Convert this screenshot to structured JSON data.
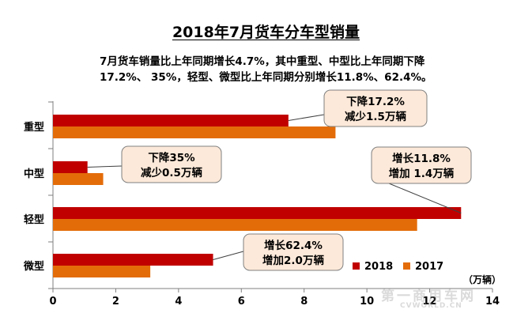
{
  "chart_title": "2018年7月货车分车型销量",
  "subtitle_lines": [
    "7月货车销量比上年同期增长4.7%，其中重型、中型比上年同期下降",
    "17.2%、 35%，轻型、微型比上年同期分别增长11.8%、62.4%。"
  ],
  "watermark": "第一商用车网",
  "watermark_en": "CVWORLD.CN",
  "colors": {
    "2018": "#c00000",
    "2017": "#e36c09",
    "callout_fill": "#fde9d9",
    "callout_border": "#808080"
  },
  "chart_data": {
    "type": "bar",
    "orientation": "horizontal",
    "categories": [
      "重型",
      "中型",
      "轻型",
      "微型"
    ],
    "series": [
      {
        "name": "2018",
        "values": [
          7.5,
          1.1,
          13.0,
          5.1
        ]
      },
      {
        "name": "2017",
        "values": [
          9.0,
          1.6,
          11.6,
          3.1
        ]
      }
    ],
    "xlim": [
      0,
      14
    ],
    "xticks": [
      0,
      2,
      4,
      6,
      8,
      10,
      12,
      14
    ],
    "unit_label": "（万辆）",
    "legend": [
      "2018",
      "2017"
    ],
    "legend_position": "bottom-right",
    "grid": false,
    "annotations": [
      {
        "category": "重型",
        "lines": [
          "下降17.2%",
          "减少1.5万辆"
        ]
      },
      {
        "category": "中型",
        "lines": [
          "下降35%",
          "减少0.5万辆"
        ]
      },
      {
        "category": "轻型",
        "lines": [
          "增长11.8%",
          "增加 1.4万辆"
        ]
      },
      {
        "category": "微型",
        "lines": [
          "增长62.4%",
          "增加2.0万辆"
        ]
      }
    ]
  }
}
